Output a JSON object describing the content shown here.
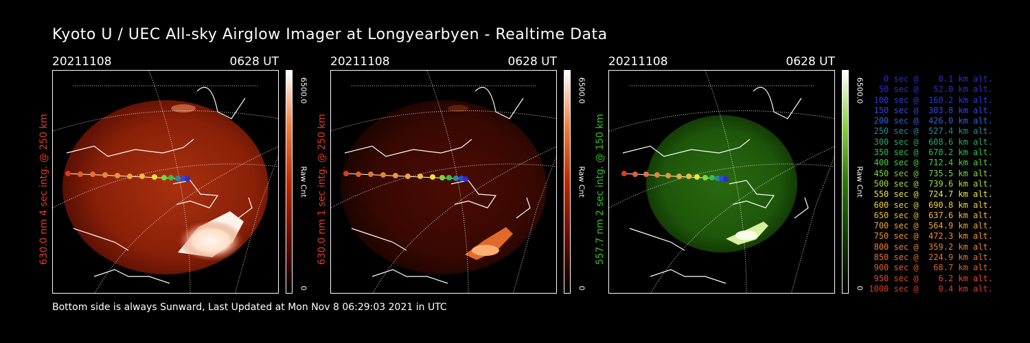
{
  "title": "Kyoto U / UEC All-sky Airglow Imager at Longyearbyen - Realtime Data",
  "footer": "Bottom side is always Sunward, Last Updated at Mon Nov  8 06:29:03 2021 in UTC",
  "panels": [
    {
      "date": "20211108",
      "time": "0628 UT",
      "vlabel": "630.0 nm 4 sec intg. @ 250 km",
      "label_color": "#e23c1e",
      "cbar_max": "6500.0",
      "cbar_min": "0",
      "cbar_unit": "Raw Cnt",
      "cmap": "red"
    },
    {
      "date": "20211108",
      "time": "0628 UT",
      "vlabel": "630.0 nm 1 sec intg. @ 250 km",
      "label_color": "#e23c1e",
      "cbar_max": "6500.0",
      "cbar_min": "0",
      "cbar_unit": "Raw Cnt",
      "cmap": "red"
    },
    {
      "date": "20211108",
      "time": "0628 UT",
      "vlabel": "557.7 nm 2 sec intg. @ 150 km",
      "label_color": "#33c21b",
      "cbar_max": "6500.0",
      "cbar_min": "0",
      "cbar_unit": "Raw Cnt",
      "cmap": "green"
    }
  ],
  "legend": [
    {
      "text": "   0 sec @    0.1 km alt.",
      "color": "#2b2bd8"
    },
    {
      "text": "  50 sec @   52.0 km alt.",
      "color": "#2a2ad8"
    },
    {
      "text": " 100 sec @  160.2 km alt.",
      "color": "#2a3ae0"
    },
    {
      "text": " 150 sec @  303.8 km alt.",
      "color": "#2b4be0"
    },
    {
      "text": " 200 sec @  426.0 km alt.",
      "color": "#2b62d8"
    },
    {
      "text": " 250 sec @  527.4 km alt.",
      "color": "#2b8a9a"
    },
    {
      "text": " 300 sec @  608.6 km alt.",
      "color": "#2aa86a"
    },
    {
      "text": " 350 sec @  670.2 km alt.",
      "color": "#2ec24a"
    },
    {
      "text": " 400 sec @  712.4 km alt.",
      "color": "#4ed23a"
    },
    {
      "text": " 450 sec @  735.5 km alt.",
      "color": "#7ad83a"
    },
    {
      "text": " 500 sec @  739.6 km alt.",
      "color": "#a8dc3c"
    },
    {
      "text": " 550 sec @  724.7 km alt.",
      "color": "#e8e83a"
    },
    {
      "text": " 600 sec @  690.8 km alt.",
      "color": "#f2d23a"
    },
    {
      "text": " 650 sec @  637.6 km alt.",
      "color": "#efbc36"
    },
    {
      "text": " 700 sec @  564.9 km alt.",
      "color": "#eca834"
    },
    {
      "text": " 750 sec @  472.3 km alt.",
      "color": "#ea9630"
    },
    {
      "text": " 800 sec @  359.2 km alt.",
      "color": "#e88430"
    },
    {
      "text": " 850 sec @  224.9 km alt.",
      "color": "#e6722c"
    },
    {
      "text": " 900 sec @   68.7 km alt.",
      "color": "#e2602a"
    },
    {
      "text": " 950 sec @    6.2 km alt.",
      "color": "#e04c26"
    },
    {
      "text": "1000 sec @    0.4 km alt.",
      "color": "#dc3a22"
    }
  ],
  "icons": {
    "track": "satellite-track",
    "map": "coastline-map"
  }
}
